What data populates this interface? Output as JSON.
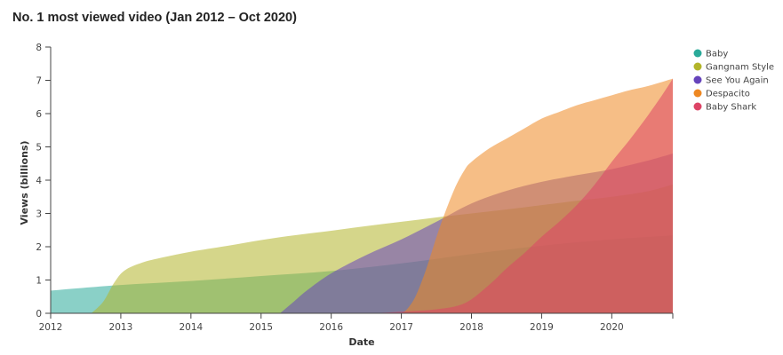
{
  "chart_data": {
    "type": "area",
    "title": "No. 1 most viewed video (Jan 2012 – Oct 2020)",
    "xlabel": "Date",
    "ylabel": "Views (billions)",
    "xlim": [
      2012,
      2020.87
    ],
    "ylim": [
      0,
      8
    ],
    "x_ticks": [
      "2012",
      "2013",
      "2014",
      "2015",
      "2016",
      "2017",
      "2018",
      "2019",
      "2020"
    ],
    "y_ticks": [
      "0",
      "1",
      "2",
      "3",
      "4",
      "5",
      "6",
      "7",
      "8"
    ],
    "legend_position": "top-right",
    "series": [
      {
        "name": "Baby",
        "color": "#2aaa99",
        "x": [
          2012,
          2013,
          2014,
          2015,
          2016,
          2017,
          2018,
          2019,
          2020,
          2020.87
        ],
        "y": [
          0.68,
          0.85,
          0.97,
          1.12,
          1.27,
          1.5,
          1.78,
          2.03,
          2.22,
          2.34
        ]
      },
      {
        "name": "Gangnam Style",
        "color": "#b3b52a",
        "x": [
          2012.58,
          2012.75,
          2012.9,
          2013.05,
          2013.3,
          2013.6,
          2014,
          2014.5,
          2015,
          2015.5,
          2016,
          2016.5,
          2017,
          2017.5,
          2018,
          2018.5,
          2019,
          2019.5,
          2020,
          2020.5,
          2020.87
        ],
        "y": [
          0,
          0.35,
          0.9,
          1.28,
          1.52,
          1.68,
          1.85,
          2.02,
          2.2,
          2.35,
          2.48,
          2.62,
          2.75,
          2.88,
          3.0,
          3.12,
          3.25,
          3.38,
          3.5,
          3.66,
          3.87
        ]
      },
      {
        "name": "See You Again",
        "color": "#6644bb",
        "x": [
          2015.27,
          2015.45,
          2015.65,
          2016,
          2016.5,
          2017,
          2017.5,
          2018,
          2018.5,
          2019,
          2019.5,
          2020,
          2020.5,
          2020.87
        ],
        "y": [
          0,
          0.32,
          0.68,
          1.2,
          1.75,
          2.22,
          2.75,
          3.3,
          3.68,
          3.95,
          4.15,
          4.33,
          4.58,
          4.8
        ]
      },
      {
        "name": "Despacito",
        "color": "#ee8822",
        "x": [
          2017.0,
          2017.08,
          2017.2,
          2017.35,
          2017.55,
          2017.75,
          2017.9,
          2018,
          2018.25,
          2018.5,
          2018.75,
          2019,
          2019.25,
          2019.5,
          2019.75,
          2020,
          2020.25,
          2020.5,
          2020.87
        ],
        "y": [
          0,
          0.12,
          0.5,
          1.3,
          2.6,
          3.7,
          4.3,
          4.55,
          4.95,
          5.25,
          5.55,
          5.85,
          6.05,
          6.25,
          6.4,
          6.55,
          6.7,
          6.82,
          7.05
        ]
      },
      {
        "name": "Baby Shark",
        "color": "#dd4466",
        "x": [
          2016.6,
          2017,
          2017.5,
          2017.9,
          2018.25,
          2018.5,
          2018.75,
          2019,
          2019.25,
          2019.5,
          2019.75,
          2020,
          2020.25,
          2020.5,
          2020.7,
          2020.87
        ],
        "y": [
          0,
          0.05,
          0.12,
          0.3,
          0.85,
          1.35,
          1.8,
          2.3,
          2.75,
          3.25,
          3.85,
          4.55,
          5.2,
          5.9,
          6.5,
          7.05
        ]
      }
    ]
  }
}
